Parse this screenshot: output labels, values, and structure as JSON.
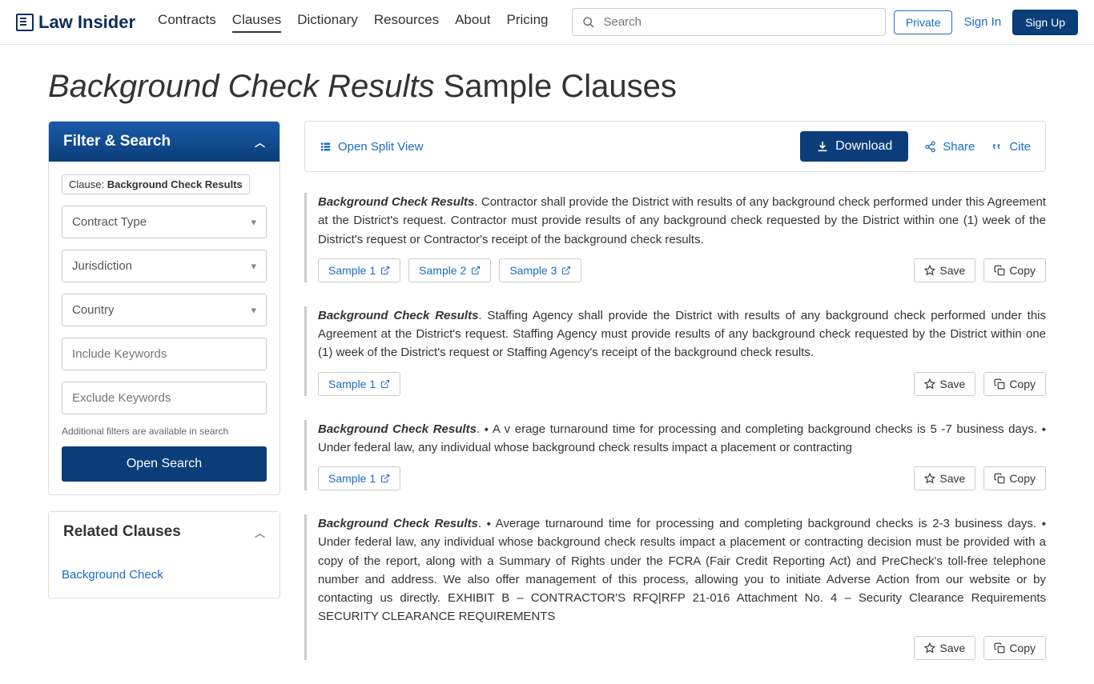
{
  "brand": "Law Insider",
  "nav": {
    "items": [
      "Contracts",
      "Clauses",
      "Dictionary",
      "Resources",
      "About",
      "Pricing"
    ],
    "active_index": 1
  },
  "search": {
    "placeholder": "Search"
  },
  "header_right": {
    "private": "Private",
    "signin": "Sign In",
    "signup": "Sign Up"
  },
  "page": {
    "title_italic": "Background Check Results",
    "title_rest": " Sample Clauses"
  },
  "filter": {
    "header": "Filter & Search",
    "tag_label": "Clause: ",
    "tag_value": "Background Check Results",
    "selects": [
      "Contract Type",
      "Jurisdiction",
      "Country"
    ],
    "include_placeholder": "Include Keywords",
    "exclude_placeholder": "Exclude Keywords",
    "help": "Additional filters are available in search",
    "open_search": "Open Search"
  },
  "related": {
    "header": "Related Clauses",
    "items": [
      "Background Check"
    ]
  },
  "toolbar": {
    "split_view": "Open Split View",
    "download": "Download",
    "share": "Share",
    "cite": "Cite"
  },
  "actions": {
    "save": "Save",
    "copy": "Copy"
  },
  "clauses": [
    {
      "title": "Background Check Results",
      "text": ". Contractor shall provide the District with results of any background check performed under this Agreement at the District's request. Contractor must provide results of any background check requested by the District within one (1) week of the District's request or Contractor's receipt of the background check results.",
      "samples": [
        "Sample 1",
        "Sample 2",
        "Sample 3"
      ]
    },
    {
      "title": "Background Check Results",
      "text": ". Staffing Agency shall provide the District with results of any background check performed under this Agreement at the District's request. Staffing Agency must provide results of any background check requested by the District within one (1) week of the District's request or Staffing Agency's receipt of the background check results.",
      "samples": [
        "Sample 1"
      ]
    },
    {
      "title": "Background Check Results",
      "text": ". ⬩ A v erage turnaround time for processing and completing background checks is 5 -7 business days. ⬩ Under federal law, any individual whose background check results impact a placement or contracting",
      "samples": [
        "Sample 1"
      ]
    },
    {
      "title": "Background Check Results",
      "text": ". ⬩ Average turnaround time for processing and completing background checks is 2-3 business days. ⬩ Under federal law, any individual whose background check results impact a placement or contracting decision must be provided with a copy of the report, along with a Summary of Rights under the FCRA (Fair Credit Reporting Act) and PreCheck's toll-free telephone number and address. We also offer management of this process, allowing you to initiate Adverse Action from our website or by contacting us directly. EXHIBIT B – CONTRACTOR'S RFQ|RFP 21-016 Attachment No. 4 – Security Clearance Requirements SECURITY CLEARANCE REQUIREMENTS",
      "samples": []
    }
  ]
}
